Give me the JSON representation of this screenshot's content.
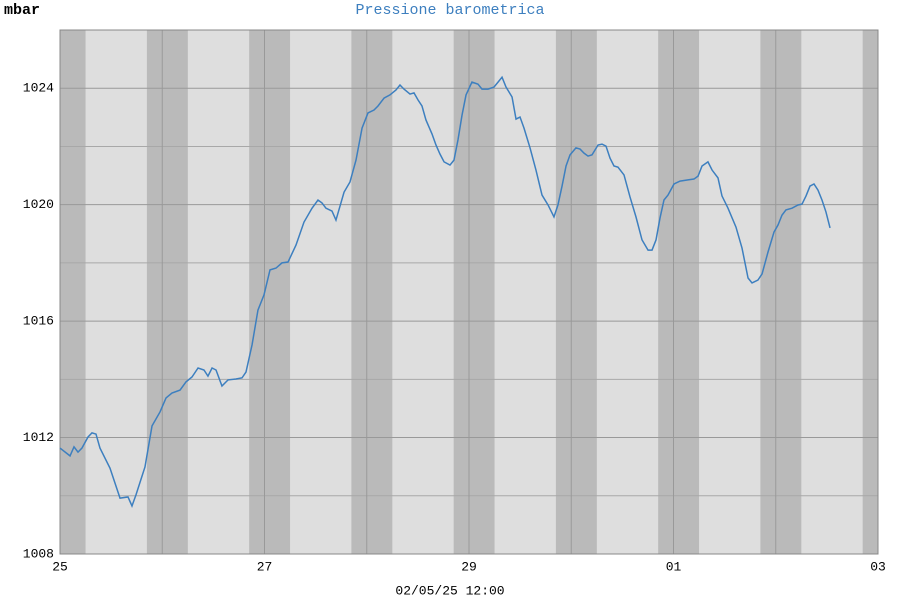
{
  "chart_data": {
    "type": "line",
    "title": "Pressione barometrica",
    "y_label": "mbar",
    "footer": "02/05/25 12:00",
    "color": "#3d7fbf",
    "xlim": [
      0,
      8
    ],
    "xticks": [
      {
        "value": 0,
        "label": "25"
      },
      {
        "value": 2,
        "label": "27"
      },
      {
        "value": 4,
        "label": "29"
      },
      {
        "value": 6,
        "label": "01"
      },
      {
        "value": 8,
        "label": "03"
      }
    ],
    "x_grid": [
      1,
      3,
      5,
      7
    ],
    "ylim": [
      1008,
      1026
    ],
    "yticks": [
      1008,
      1012,
      1016,
      1020,
      1024
    ],
    "y_grid": [
      1010,
      1014,
      1018,
      1022
    ],
    "grid": true,
    "x": [
      0,
      0.098,
      0.137,
      0.176,
      0.215,
      0.274,
      0.313,
      0.352,
      0.391,
      0.489,
      0.587,
      0.665,
      0.704,
      0.743,
      0.831,
      0.9,
      0.978,
      1.037,
      1.095,
      1.174,
      1.232,
      1.291,
      1.35,
      1.408,
      1.447,
      1.487,
      1.526,
      1.584,
      1.643,
      1.721,
      1.78,
      1.819,
      1.878,
      1.936,
      1.995,
      2.054,
      2.112,
      2.171,
      2.23,
      2.308,
      2.386,
      2.465,
      2.523,
      2.562,
      2.601,
      2.66,
      2.699,
      2.778,
      2.836,
      2.895,
      2.954,
      3.012,
      3.071,
      3.11,
      3.169,
      3.227,
      3.286,
      3.325,
      3.364,
      3.423,
      3.462,
      3.501,
      3.54,
      3.579,
      3.638,
      3.677,
      3.716,
      3.756,
      3.814,
      3.853,
      3.892,
      3.932,
      3.971,
      4.029,
      4.088,
      4.127,
      4.186,
      4.244,
      4.284,
      4.323,
      4.362,
      4.421,
      4.46,
      4.499,
      4.538,
      4.597,
      4.655,
      4.714,
      4.773,
      4.831,
      4.87,
      4.91,
      4.949,
      4.988,
      5.046,
      5.086,
      5.125,
      5.164,
      5.203,
      5.262,
      5.301,
      5.34,
      5.379,
      5.418,
      5.457,
      5.516,
      5.575,
      5.633,
      5.692,
      5.751,
      5.79,
      5.829,
      5.868,
      5.907,
      5.946,
      6.005,
      6.064,
      6.142,
      6.2,
      6.24,
      6.279,
      6.337,
      6.377,
      6.435,
      6.474,
      6.533,
      6.611,
      6.67,
      6.729,
      6.768,
      6.826,
      6.866,
      6.924,
      6.983,
      7.022,
      7.061,
      7.1,
      7.159,
      7.218,
      7.257,
      7.296,
      7.335,
      7.374,
      7.413,
      7.452,
      7.491,
      7.531
    ],
    "values": [
      1011.64,
      1011.37,
      1011.68,
      1011.5,
      1011.64,
      1012.02,
      1012.16,
      1012.12,
      1011.64,
      1010.95,
      1009.92,
      1009.96,
      1009.65,
      1010.03,
      1010.99,
      1012.4,
      1012.88,
      1013.36,
      1013.53,
      1013.63,
      1013.91,
      1014.08,
      1014.39,
      1014.32,
      1014.11,
      1014.39,
      1014.32,
      1013.77,
      1013.98,
      1014.01,
      1014.05,
      1014.25,
      1015.18,
      1016.38,
      1016.9,
      1017.76,
      1017.82,
      1018,
      1018.03,
      1018.61,
      1019.4,
      1019.88,
      1020.16,
      1020.06,
      1019.88,
      1019.78,
      1019.47,
      1020.43,
      1020.78,
      1021.53,
      1022.63,
      1023.15,
      1023.25,
      1023.39,
      1023.66,
      1023.77,
      1023.94,
      1024.11,
      1023.97,
      1023.8,
      1023.84,
      1023.6,
      1023.39,
      1022.91,
      1022.43,
      1022.05,
      1021.74,
      1021.47,
      1021.36,
      1021.53,
      1022.22,
      1023.08,
      1023.77,
      1024.21,
      1024.14,
      1023.97,
      1023.97,
      1024.04,
      1024.21,
      1024.38,
      1024.04,
      1023.7,
      1022.94,
      1023.01,
      1022.63,
      1021.95,
      1021.19,
      1020.33,
      1019.99,
      1019.58,
      1019.99,
      1020.64,
      1021.33,
      1021.71,
      1021.95,
      1021.91,
      1021.77,
      1021.67,
      1021.71,
      1022.05,
      1022.08,
      1022.01,
      1021.6,
      1021.33,
      1021.29,
      1021.02,
      1020.26,
      1019.58,
      1018.79,
      1018.44,
      1018.44,
      1018.79,
      1019.54,
      1020.16,
      1020.33,
      1020.71,
      1020.81,
      1020.85,
      1020.88,
      1020.98,
      1021.33,
      1021.47,
      1021.19,
      1020.92,
      1020.3,
      1019.88,
      1019.23,
      1018.51,
      1017.48,
      1017.31,
      1017.41,
      1017.62,
      1018.37,
      1019.06,
      1019.3,
      1019.64,
      1019.82,
      1019.88,
      1019.99,
      1020.02,
      1020.3,
      1020.64,
      1020.71,
      1020.5,
      1020.16,
      1019.75,
      1019.2
    ]
  }
}
